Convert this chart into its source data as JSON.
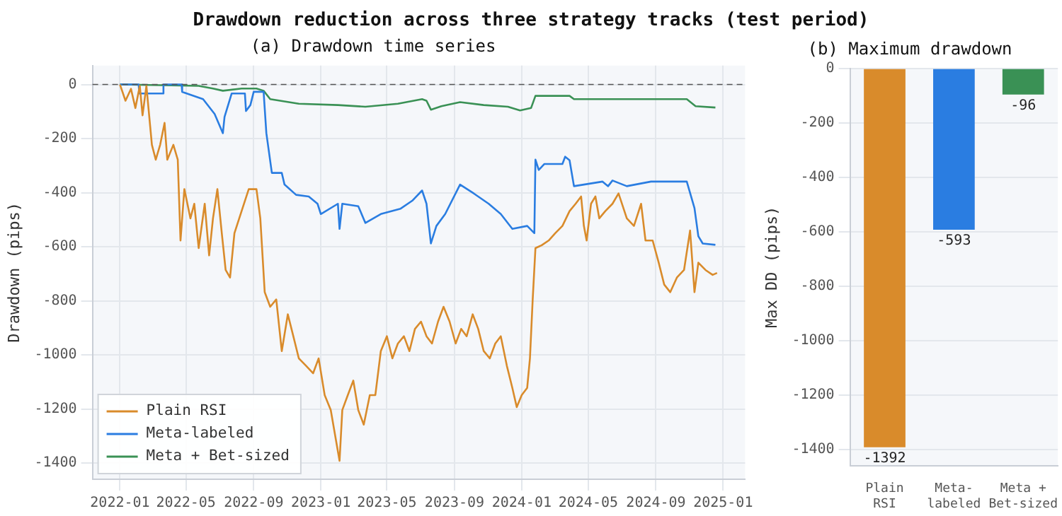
{
  "chart_data": [
    {
      "type": "line",
      "title": "Drawdown reduction across three strategy tracks (test period)",
      "subtitle": "(a) Drawdown time series",
      "ylabel": "Drawdown (pips)",
      "xlim": [
        "2021-11-12",
        "2025-02-10"
      ],
      "ylim": [
        -1460,
        70
      ],
      "xticks": [
        "2022-01",
        "2022-05",
        "2022-09",
        "2023-01",
        "2023-05",
        "2023-09",
        "2024-01",
        "2024-05",
        "2024-09",
        "2025-01"
      ],
      "yticks": [
        0,
        -200,
        -400,
        -600,
        -800,
        -1000,
        -1200,
        -1400
      ],
      "grid": true,
      "legend": "bottom left",
      "marker": "none",
      "ref_lines": [
        {
          "axis": "y",
          "value": 0,
          "color": "#555555",
          "line_style": "dashed"
        }
      ],
      "series": [
        {
          "name": "Plain RSI",
          "color": "#d98b2b",
          "x": [
            "2022-01-01",
            "2022-01-11",
            "2022-01-21",
            "2022-01-29",
            "2022-02-06",
            "2022-02-11",
            "2022-02-18",
            "2022-02-28",
            "2022-03-07",
            "2022-03-15",
            "2022-03-23",
            "2022-03-28",
            "2022-04-08",
            "2022-04-16",
            "2022-04-21",
            "2022-04-28",
            "2022-05-09",
            "2022-05-16",
            "2022-05-24",
            "2022-06-04",
            "2022-06-12",
            "2022-06-19",
            "2022-06-27",
            "2022-07-05",
            "2022-07-12",
            "2022-07-20",
            "2022-07-28",
            "2022-08-10",
            "2022-08-23",
            "2022-09-06",
            "2022-09-13",
            "2022-09-21",
            "2022-10-01",
            "2022-10-12",
            "2022-10-22",
            "2022-11-02",
            "2022-11-12",
            "2022-11-22",
            "2022-12-05",
            "2022-12-18",
            "2022-12-28",
            "2023-01-08",
            "2023-01-19",
            "2023-02-04",
            "2023-02-09",
            "2023-02-19",
            "2023-03-01",
            "2023-03-10",
            "2023-03-20",
            "2023-03-31",
            "2023-04-10",
            "2023-04-20",
            "2023-05-01",
            "2023-05-11",
            "2023-05-21",
            "2023-06-01",
            "2023-06-11",
            "2023-06-21",
            "2023-07-02",
            "2023-07-12",
            "2023-07-22",
            "2023-08-02",
            "2023-08-12",
            "2023-08-23",
            "2023-09-03",
            "2023-09-13",
            "2023-09-23",
            "2023-10-04",
            "2023-10-14",
            "2023-10-24",
            "2023-11-04",
            "2023-11-14",
            "2023-11-24",
            "2023-12-05",
            "2023-12-15",
            "2023-12-23",
            "2024-01-01",
            "2024-01-11",
            "2024-01-16",
            "2024-01-21",
            "2024-01-26",
            "2024-02-06",
            "2024-02-19",
            "2024-03-02",
            "2024-03-15",
            "2024-03-28",
            "2024-04-08",
            "2024-04-18",
            "2024-04-23",
            "2024-04-28",
            "2024-05-06",
            "2024-05-14",
            "2024-05-21",
            "2024-06-01",
            "2024-06-14",
            "2024-06-25",
            "2024-07-10",
            "2024-07-23",
            "2024-08-05",
            "2024-08-13",
            "2024-08-26",
            "2024-09-06",
            "2024-09-16",
            "2024-09-27",
            "2024-10-09",
            "2024-10-22",
            "2024-11-02",
            "2024-11-10",
            "2024-11-17",
            "2024-11-30",
            "2024-12-13",
            "2024-12-21"
          ],
          "values": [
            0,
            -60,
            -16,
            -87,
            -5,
            -114,
            -5,
            -223,
            -278,
            -223,
            -142,
            -278,
            -223,
            -278,
            -577,
            -387,
            -495,
            -441,
            -605,
            -441,
            -632,
            -495,
            -387,
            -550,
            -686,
            -714,
            -550,
            -468,
            -387,
            -387,
            -495,
            -768,
            -822,
            -795,
            -986,
            -850,
            -931,
            -1013,
            -1040,
            -1068,
            -1013,
            -1149,
            -1204,
            -1392,
            -1204,
            -1149,
            -1095,
            -1204,
            -1258,
            -1149,
            -1149,
            -986,
            -931,
            -1013,
            -958,
            -931,
            -986,
            -904,
            -877,
            -931,
            -958,
            -877,
            -822,
            -877,
            -958,
            -904,
            -931,
            -850,
            -904,
            -986,
            -1013,
            -958,
            -931,
            -1040,
            -1122,
            -1193,
            -1149,
            -1122,
            -1013,
            -795,
            -605,
            -595,
            -577,
            -550,
            -523,
            -468,
            -441,
            -414,
            -523,
            -577,
            -441,
            -414,
            -495,
            -468,
            -441,
            -403,
            -495,
            -523,
            -441,
            -577,
            -577,
            -659,
            -740,
            -768,
            -714,
            -686,
            -540,
            -768,
            -659,
            -686,
            -704,
            -697
          ]
        },
        {
          "name": "Meta-labeled",
          "color": "#2a7de1",
          "x": [
            "2022-01-01",
            "2022-02-04",
            "2022-02-05",
            "2022-03-20",
            "2022-03-21",
            "2022-04-23",
            "2022-04-24",
            "2022-06-01",
            "2022-06-22",
            "2022-07-07",
            "2022-07-10",
            "2022-07-23",
            "2022-08-16",
            "2022-08-18",
            "2022-08-26",
            "2022-09-01",
            "2022-09-19",
            "2022-09-24",
            "2022-10-04",
            "2022-10-22",
            "2022-10-27",
            "2022-11-17",
            "2022-12-10",
            "2022-12-26",
            "2023-01-01",
            "2023-02-01",
            "2023-02-04",
            "2023-02-09",
            "2023-03-10",
            "2023-03-23",
            "2023-04-20",
            "2023-05-26",
            "2023-06-16",
            "2023-07-04",
            "2023-07-12",
            "2023-07-20",
            "2023-07-30",
            "2023-08-15",
            "2023-09-11",
            "2023-10-06",
            "2023-11-02",
            "2023-11-24",
            "2023-12-15",
            "2024-01-11",
            "2024-01-24",
            "2024-01-26",
            "2024-02-01",
            "2024-02-11",
            "2024-03-15",
            "2024-03-20",
            "2024-03-28",
            "2024-04-05",
            "2024-05-27",
            "2024-06-06",
            "2024-06-14",
            "2024-07-10",
            "2024-08-23",
            "2024-10-27",
            "2024-11-10",
            "2024-11-17",
            "2024-11-25",
            "2024-12-18"
          ],
          "values": [
            0,
            0,
            -33,
            -33,
            0,
            0,
            -27,
            -54,
            -109,
            -180,
            -120,
            -33,
            -33,
            -98,
            -76,
            -27,
            -27,
            -180,
            -327,
            -327,
            -370,
            -408,
            -414,
            -441,
            -479,
            -441,
            -534,
            -441,
            -450,
            -512,
            -479,
            -459,
            -430,
            -392,
            -441,
            -588,
            -523,
            -479,
            -370,
            -403,
            -441,
            -479,
            -534,
            -523,
            -550,
            -278,
            -316,
            -294,
            -294,
            -267,
            -280,
            -376,
            -359,
            -376,
            -355,
            -376,
            -359,
            -359,
            -457,
            -561,
            -588,
            -593
          ]
        },
        {
          "name": "Meta + Bet-sized",
          "color": "#3a9155",
          "x": [
            "2022-01-01",
            "2022-05-24",
            "2022-06-19",
            "2022-07-07",
            "2022-08-10",
            "2022-09-06",
            "2022-09-19",
            "2022-10-01",
            "2022-11-22",
            "2023-02-01",
            "2023-03-23",
            "2023-05-21",
            "2023-07-04",
            "2023-07-12",
            "2023-07-20",
            "2023-08-08",
            "2023-09-11",
            "2023-10-24",
            "2023-12-07",
            "2023-12-29",
            "2024-01-18",
            "2024-01-26",
            "2024-03-28",
            "2024-04-05",
            "2024-10-27",
            "2024-11-12",
            "2024-12-18"
          ],
          "values": [
            0,
            -5,
            -15,
            -23,
            -15,
            -15,
            -23,
            -54,
            -71,
            -76,
            -82,
            -71,
            -54,
            -60,
            -93,
            -80,
            -65,
            -76,
            -82,
            -96,
            -87,
            -42,
            -42,
            -54,
            -54,
            -80,
            -85
          ]
        }
      ]
    },
    {
      "type": "bar",
      "title": "(b) Maximum drawdown",
      "ylabel": "Max DD (pips)",
      "categories": [
        "Plain RSI",
        "Meta-labeled",
        "Meta + Bet-sized"
      ],
      "values": [
        -1392,
        -593,
        -96
      ],
      "colors": [
        "#d98b2b",
        "#2a7de1",
        "#3a9155"
      ],
      "ylim": [
        -1460,
        0
      ],
      "yticks": [
        0,
        -200,
        -400,
        -600,
        -800,
        -1000,
        -1200,
        -1400
      ],
      "grid": "y",
      "data_labels": true
    }
  ]
}
